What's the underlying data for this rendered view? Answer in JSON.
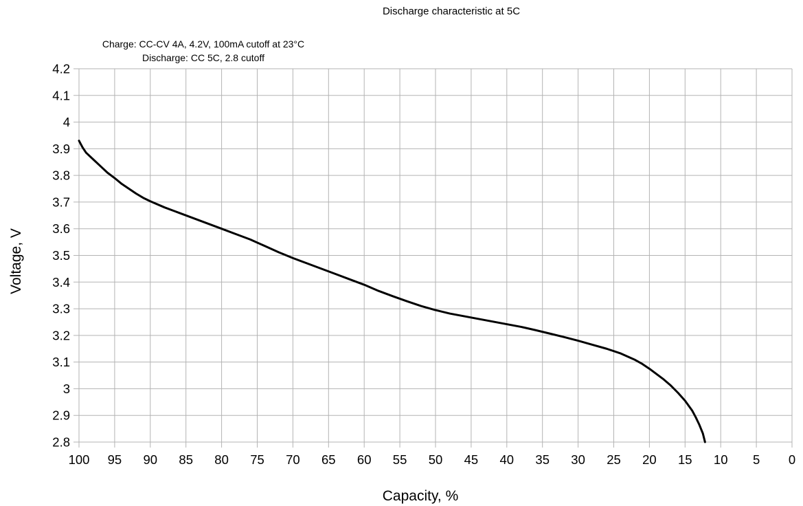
{
  "chart_data": {
    "type": "line",
    "title": "Discharge characteristic at 5C",
    "annotation_line1": "Charge: CC-CV 4A, 4.2V, 100mA cutoff at 23°C",
    "annotation_line2": "Discharge: CC 5C, 2.8 cutoff",
    "xlabel": "Capacity, %",
    "ylabel": "Voltage, V",
    "xlim": [
      100,
      0
    ],
    "ylim": [
      2.8,
      4.2
    ],
    "x_reversed": true,
    "grid": true,
    "x_ticks": [
      "100",
      "95",
      "90",
      "85",
      "80",
      "75",
      "70",
      "65",
      "60",
      "55",
      "50",
      "45",
      "40",
      "35",
      "30",
      "25",
      "20",
      "15",
      "10",
      "5",
      "0"
    ],
    "y_ticks": [
      "4.2",
      "4.1",
      "4",
      "3.9",
      "3.8",
      "3.7",
      "3.6",
      "3.5",
      "3.4",
      "3.3",
      "3.2",
      "3.1",
      "3",
      "2.9",
      "2.8"
    ],
    "series": [
      {
        "color": "#000000",
        "x": [
          100,
          99.5,
          99,
          98,
          97,
          96,
          95,
          94,
          93,
          92,
          91,
          90,
          88,
          86,
          84,
          82,
          80,
          78,
          76,
          74,
          72,
          70,
          68,
          66,
          64,
          62,
          60,
          58,
          56,
          54,
          52,
          50,
          48,
          46,
          44,
          42,
          40,
          38,
          36,
          34,
          32,
          30,
          28,
          26,
          24,
          22,
          21,
          20,
          19,
          18,
          17,
          16,
          15,
          14,
          13.5,
          13,
          12.5,
          12.2
        ],
        "y": [
          3.93,
          3.905,
          3.885,
          3.86,
          3.835,
          3.81,
          3.79,
          3.768,
          3.75,
          3.732,
          3.716,
          3.703,
          3.68,
          3.66,
          3.64,
          3.62,
          3.6,
          3.58,
          3.56,
          3.536,
          3.512,
          3.49,
          3.47,
          3.45,
          3.43,
          3.41,
          3.39,
          3.367,
          3.347,
          3.328,
          3.31,
          3.295,
          3.282,
          3.272,
          3.262,
          3.252,
          3.242,
          3.232,
          3.22,
          3.207,
          3.194,
          3.18,
          3.165,
          3.15,
          3.132,
          3.108,
          3.093,
          3.075,
          3.055,
          3.035,
          3.012,
          2.985,
          2.955,
          2.918,
          2.893,
          2.865,
          2.832,
          2.8
        ]
      }
    ]
  }
}
